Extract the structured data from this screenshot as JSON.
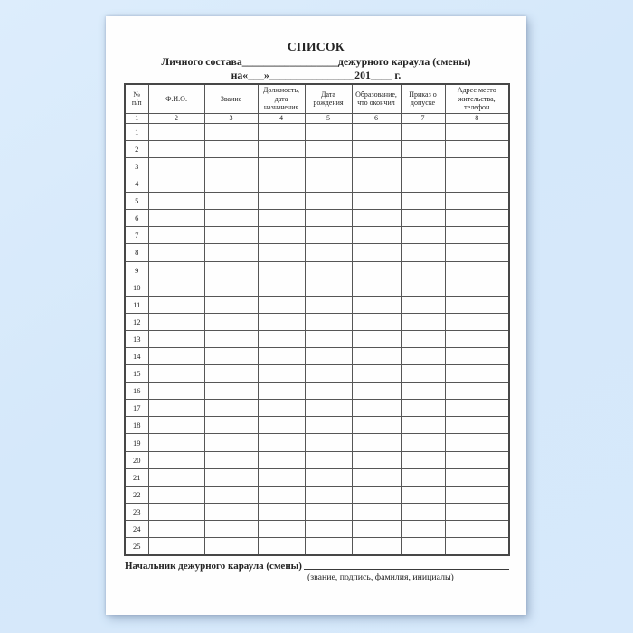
{
  "page": {
    "title": "СПИСОК",
    "subtitle_line": "Личного состава__________________дежурного караула (смены)",
    "date_line": "на«___»________________201____ г."
  },
  "table": {
    "headers": [
      "№\nп/п",
      "Ф.И.О.",
      "Звание",
      "Должность,\nдата\nназначения",
      "Дата\nрождения",
      "Образование,\nчто окончил",
      "Приказ о\nдопуске",
      "Адрес место\nжительства,\nтелефон"
    ],
    "column_numbers": [
      "1",
      "2",
      "3",
      "4",
      "5",
      "6",
      "7",
      "8"
    ],
    "row_numbers": [
      "1",
      "2",
      "3",
      "4",
      "5",
      "6",
      "7",
      "8",
      "9",
      "10",
      "11",
      "12",
      "13",
      "14",
      "15",
      "16",
      "17",
      "18",
      "19",
      "20",
      "21",
      "22",
      "23",
      "24",
      "25"
    ],
    "columns_per_row": 8
  },
  "footer": {
    "label": "Начальник дежурного караула (смены)",
    "hint": "(звание, подпись, фамилия, инициалы)"
  }
}
